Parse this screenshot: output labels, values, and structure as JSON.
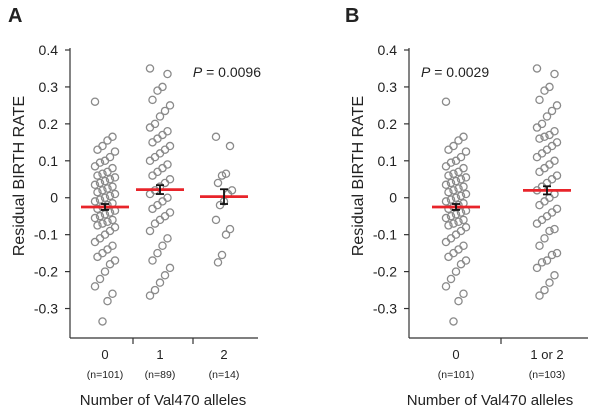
{
  "chart_data": [
    {
      "panel_label": "A",
      "type": "scatter",
      "title": "",
      "xlabel": "Number of Val470 alleles",
      "ylabel": "Residual BIRTH RATE",
      "ylim": [
        -0.35,
        0.4
      ],
      "yticks": [
        "0.4",
        "0.3",
        "0.2",
        "0.1",
        "0",
        "-0.1",
        "-0.2",
        "-0.3"
      ],
      "ytick_values": [
        0.4,
        0.3,
        0.2,
        0.1,
        0,
        -0.1,
        -0.2,
        -0.3
      ],
      "p_label": "P",
      "p_value": " = 0.0096",
      "p_position": "top-right",
      "groups": [
        {
          "label": "0",
          "n_label": "(n=101)",
          "mean": -0.025,
          "se": 0.008,
          "points": [
            0.26,
            0.165,
            0.155,
            0.14,
            0.13,
            0.125,
            0.11,
            0.1,
            0.095,
            0.085,
            0.08,
            0.07,
            0.065,
            0.06,
            0.055,
            0.05,
            0.045,
            0.04,
            0.035,
            0.03,
            0.025,
            0.02,
            0.015,
            0.01,
            0.005,
            0.0,
            -0.005,
            -0.01,
            -0.015,
            -0.02,
            -0.025,
            -0.03,
            -0.035,
            -0.04,
            -0.045,
            -0.05,
            -0.055,
            -0.06,
            -0.065,
            -0.07,
            -0.075,
            -0.08,
            -0.09,
            -0.1,
            -0.11,
            -0.12,
            -0.13,
            -0.14,
            -0.15,
            -0.16,
            -0.17,
            -0.18,
            -0.2,
            -0.22,
            -0.24,
            -0.26,
            -0.28,
            -0.335
          ]
        },
        {
          "label": "1",
          "n_label": "(n=89)",
          "mean": 0.022,
          "se": 0.012,
          "points": [
            0.35,
            0.335,
            0.3,
            0.29,
            0.265,
            0.25,
            0.235,
            0.22,
            0.2,
            0.19,
            0.18,
            0.17,
            0.16,
            0.15,
            0.14,
            0.13,
            0.12,
            0.11,
            0.1,
            0.09,
            0.08,
            0.07,
            0.06,
            0.05,
            0.04,
            0.03,
            0.02,
            0.01,
            0.0,
            -0.01,
            -0.02,
            -0.03,
            -0.04,
            -0.05,
            -0.06,
            -0.07,
            -0.09,
            -0.11,
            -0.13,
            -0.15,
            -0.17,
            -0.19,
            -0.21,
            -0.23,
            -0.25,
            -0.265
          ]
        },
        {
          "label": "2",
          "n_label": "(n=14)",
          "mean": 0.003,
          "se": 0.02,
          "points": [
            0.165,
            0.14,
            0.065,
            0.06,
            0.04,
            0.02,
            0.01,
            -0.01,
            -0.02,
            -0.06,
            -0.085,
            -0.1,
            -0.155,
            -0.175
          ]
        }
      ]
    },
    {
      "panel_label": "B",
      "type": "scatter",
      "title": "",
      "xlabel": "Number of Val470 alleles",
      "ylabel": "Residual BIRTH RATE",
      "ylim": [
        -0.35,
        0.4
      ],
      "yticks": [
        "0.4",
        "0.3",
        "0.2",
        "0.1",
        "0",
        "-0.1",
        "-0.2",
        "-0.3"
      ],
      "ytick_values": [
        0.4,
        0.3,
        0.2,
        0.1,
        0,
        -0.1,
        -0.2,
        -0.3
      ],
      "p_label": "P",
      "p_value": " = 0.0029",
      "p_position": "top-left",
      "groups": [
        {
          "label": "0",
          "n_label": "(n=101)",
          "mean": -0.025,
          "se": 0.008,
          "points": [
            0.26,
            0.165,
            0.155,
            0.14,
            0.13,
            0.125,
            0.11,
            0.1,
            0.095,
            0.085,
            0.08,
            0.07,
            0.065,
            0.06,
            0.055,
            0.05,
            0.045,
            0.04,
            0.035,
            0.03,
            0.025,
            0.02,
            0.015,
            0.01,
            0.005,
            0.0,
            -0.005,
            -0.01,
            -0.015,
            -0.02,
            -0.025,
            -0.03,
            -0.035,
            -0.04,
            -0.045,
            -0.05,
            -0.055,
            -0.06,
            -0.065,
            -0.07,
            -0.075,
            -0.08,
            -0.09,
            -0.1,
            -0.11,
            -0.12,
            -0.13,
            -0.14,
            -0.15,
            -0.16,
            -0.17,
            -0.18,
            -0.2,
            -0.22,
            -0.24,
            -0.26,
            -0.28,
            -0.335
          ]
        },
        {
          "label": "1 or 2",
          "n_label": "(n=103)",
          "mean": 0.02,
          "se": 0.011,
          "points": [
            0.35,
            0.335,
            0.3,
            0.29,
            0.265,
            0.25,
            0.235,
            0.22,
            0.2,
            0.19,
            0.18,
            0.17,
            0.165,
            0.16,
            0.15,
            0.14,
            0.13,
            0.12,
            0.11,
            0.1,
            0.09,
            0.08,
            0.07,
            0.06,
            0.05,
            0.04,
            0.03,
            0.02,
            0.01,
            0.0,
            -0.01,
            -0.02,
            -0.03,
            -0.04,
            -0.05,
            -0.06,
            -0.07,
            -0.085,
            -0.09,
            -0.11,
            -0.13,
            -0.15,
            -0.155,
            -0.17,
            -0.175,
            -0.19,
            -0.21,
            -0.23,
            -0.25,
            -0.265
          ]
        }
      ]
    }
  ],
  "colors": {
    "marker_stroke": "#8a8a8a",
    "mean_line": "#e8242a",
    "error_bar": "#111111",
    "axis": "#333333",
    "text": "#222222"
  }
}
